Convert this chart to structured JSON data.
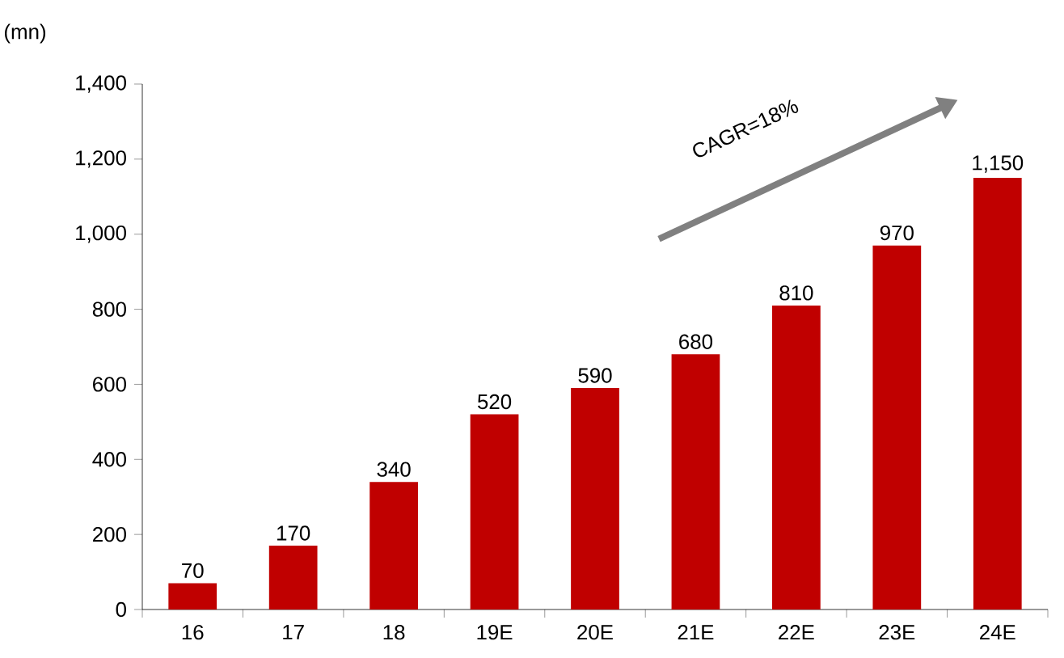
{
  "chart_data": {
    "type": "bar",
    "ylabel": "(mn)",
    "categories": [
      "16",
      "17",
      "18",
      "19E",
      "20E",
      "21E",
      "22E",
      "23E",
      "24E"
    ],
    "values": [
      70,
      170,
      340,
      520,
      590,
      680,
      810,
      970,
      1150
    ],
    "value_labels": [
      "70",
      "170",
      "340",
      "520",
      "590",
      "680",
      "810",
      "970",
      "1,150"
    ],
    "color": "#c00000",
    "ylim": [
      0,
      1400
    ],
    "yticks": [
      0,
      200,
      400,
      600,
      800,
      {
        "value": 1000,
        "label": "1,000"
      },
      {
        "value": 1200,
        "label": "1,200"
      },
      {
        "value": 1400,
        "label": "1,400"
      }
    ],
    "annotations": [
      "CAGR=18%"
    ],
    "grid": false
  }
}
